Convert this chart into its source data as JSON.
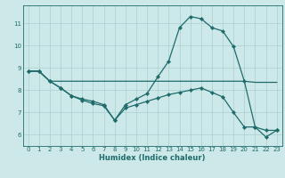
{
  "xlabel": "Humidex (Indice chaleur)",
  "bg_color": "#cce8e8",
  "line_color": "#1f6b6b",
  "grid_color": "#aacfcf",
  "xlim": [
    -0.5,
    23.5
  ],
  "ylim": [
    5.5,
    11.8
  ],
  "yticks": [
    6,
    7,
    8,
    9,
    10,
    11
  ],
  "xticks": [
    0,
    1,
    2,
    3,
    4,
    5,
    6,
    7,
    8,
    9,
    10,
    11,
    12,
    13,
    14,
    15,
    16,
    17,
    18,
    19,
    20,
    21,
    22,
    23
  ],
  "line1_x": [
    0,
    1,
    2,
    3,
    4,
    5,
    6,
    7,
    8,
    9,
    10,
    11,
    12,
    13,
    14,
    15,
    16,
    17,
    18,
    19,
    20,
    21,
    22,
    23
  ],
  "line1_y": [
    8.85,
    8.85,
    8.4,
    8.1,
    7.75,
    7.6,
    7.5,
    7.35,
    6.65,
    7.35,
    7.6,
    7.85,
    8.6,
    9.3,
    10.8,
    11.3,
    11.2,
    10.8,
    10.65,
    9.95,
    8.4,
    6.35,
    5.9,
    6.2
  ],
  "line2_x": [
    0,
    1,
    2,
    3,
    19,
    20,
    21,
    22,
    23
  ],
  "line2_y": [
    8.85,
    8.85,
    8.4,
    8.4,
    8.4,
    8.4,
    8.35,
    8.35,
    8.35
  ],
  "line3_x": [
    0,
    1,
    2,
    3,
    4,
    5,
    6,
    7,
    8,
    9,
    10,
    11,
    12,
    13,
    14,
    15,
    16,
    17,
    18,
    19,
    20,
    21,
    22,
    23
  ],
  "line3_y": [
    8.85,
    8.85,
    8.4,
    8.1,
    7.75,
    7.55,
    7.4,
    7.3,
    6.65,
    7.2,
    7.35,
    7.5,
    7.65,
    7.8,
    7.9,
    8.0,
    8.1,
    7.9,
    7.7,
    7.0,
    6.35,
    6.35,
    6.2,
    6.2
  ]
}
